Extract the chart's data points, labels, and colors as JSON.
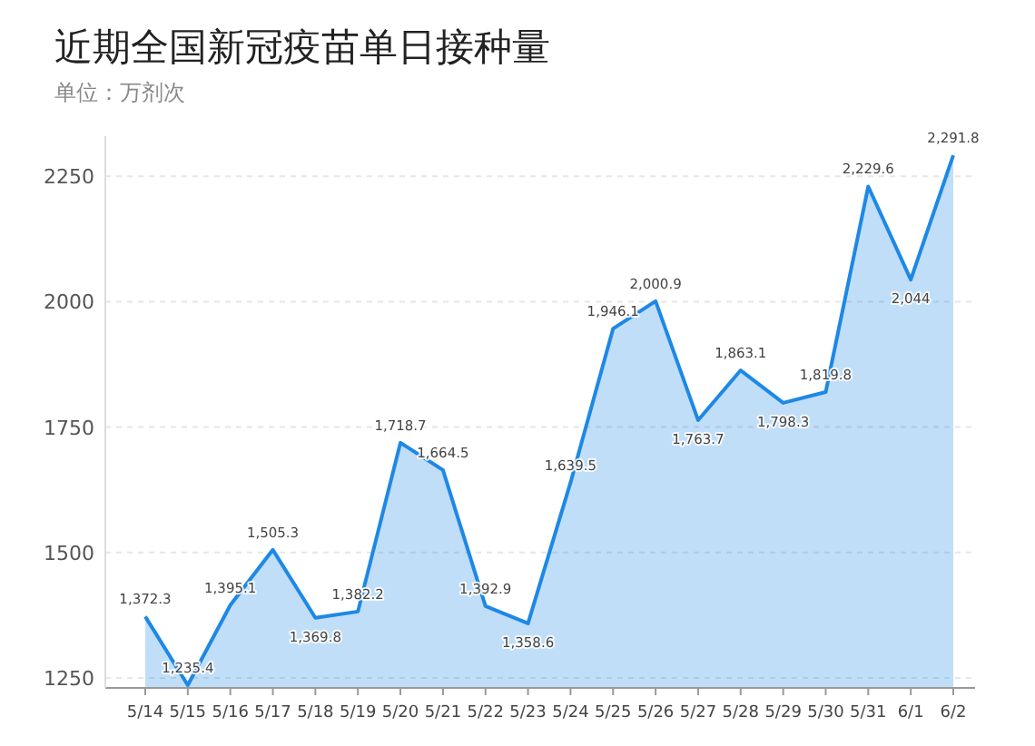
{
  "chart_data": {
    "type": "area",
    "title": "近期全国新冠疫苗单日接种量",
    "subtitle": "单位：万剂次",
    "categories": [
      "5/14",
      "5/15",
      "5/16",
      "5/17",
      "5/18",
      "5/19",
      "5/20",
      "5/21",
      "5/22",
      "5/23",
      "5/24",
      "5/25",
      "5/26",
      "5/27",
      "5/28",
      "5/29",
      "5/30",
      "5/31",
      "6/1",
      "6/2"
    ],
    "series": [
      {
        "color": "#1e88e5",
        "values": [
          1372.3,
          1235.4,
          1395.1,
          1505.3,
          1369.8,
          1382.2,
          1718.7,
          1664.5,
          1392.9,
          1358.6,
          1639.5,
          1946.1,
          2000.9,
          1763.7,
          1863.1,
          1798.3,
          1819.8,
          2229.6,
          2044,
          2291.8
        ],
        "value_labels": [
          "1,372.3",
          "1,235.4",
          "1,395.1",
          "1,505.3",
          "1,369.8",
          "1,382.2",
          "1,718.7",
          "1,664.5",
          "1,392.9",
          "1,358.6",
          "1,639.5",
          "1,946.1",
          "2,000.9",
          "1,763.7",
          "1,863.1",
          "1,798.3",
          "1,819.8",
          "2,229.6",
          "2,044",
          "2,291.8"
        ]
      }
    ],
    "ylim": [
      1230,
      2330
    ],
    "yticks": [
      1250,
      1500,
      1750,
      2000,
      2250
    ],
    "grid": "y"
  }
}
